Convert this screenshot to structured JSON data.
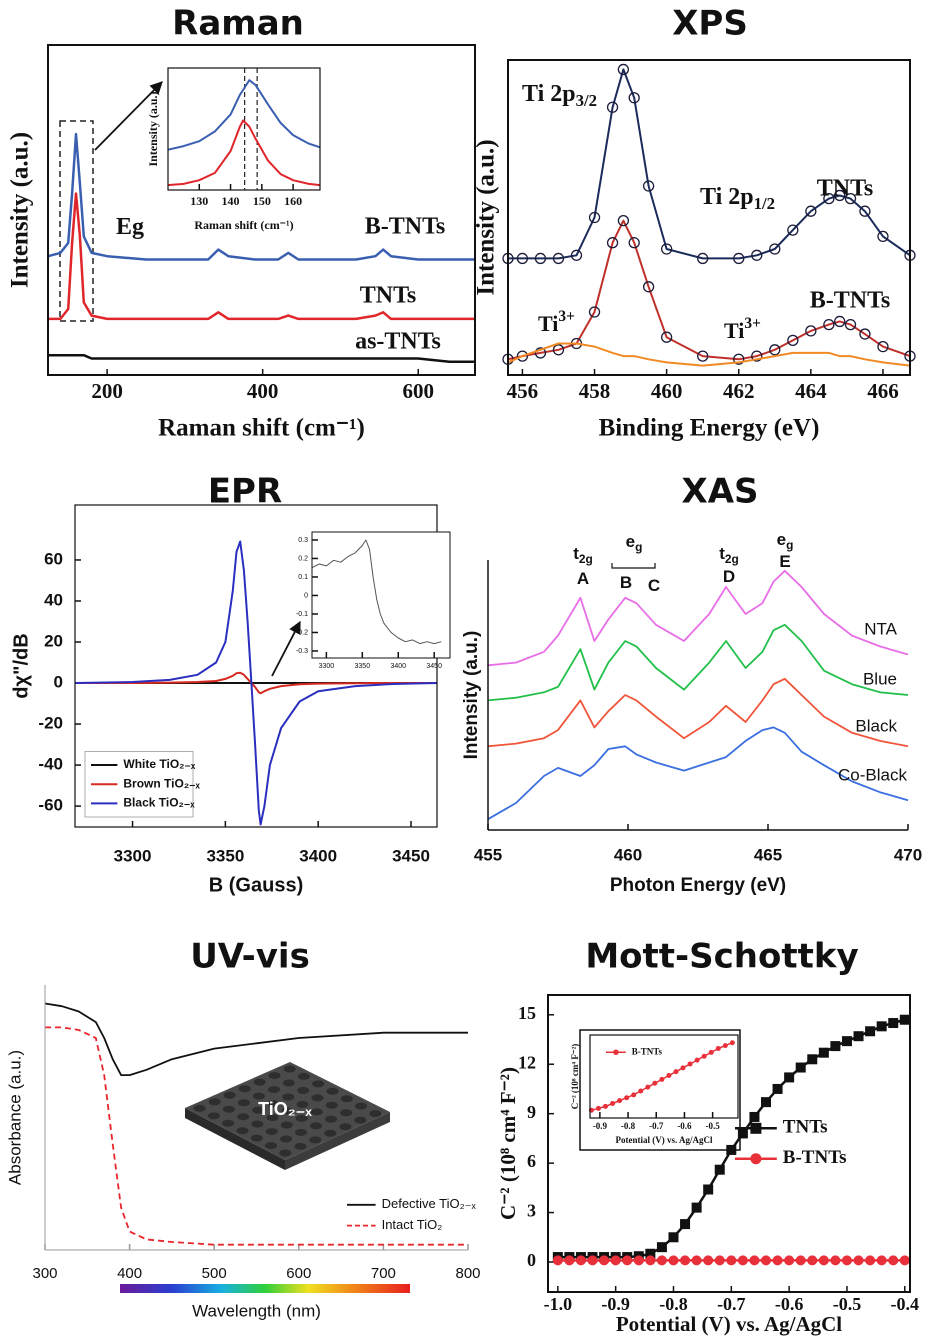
{
  "chart_data": [
    {
      "type": "line",
      "title": "Raman",
      "xlabel": "Raman shift (cm⁻¹)",
      "ylabel": "Intensity (a.u.)",
      "xlim": [
        124,
        673
      ],
      "xticks": [
        200,
        400,
        600
      ],
      "ylim": [
        0,
        100
      ],
      "x": [
        124,
        140,
        150,
        155,
        160,
        165,
        170,
        180,
        200,
        250,
        300,
        330,
        343,
        356,
        390,
        420,
        433,
        446,
        480,
        520,
        545,
        555,
        565,
        600,
        640,
        673
      ],
      "series": [
        {
          "name": "B-TNTs",
          "color": "#3a5fb0",
          "values": [
            36,
            37,
            40,
            55,
            73,
            58,
            42,
            37,
            36,
            35,
            35,
            35,
            38,
            36,
            35,
            35,
            37,
            35,
            35,
            35,
            36,
            38,
            36,
            35,
            35,
            35
          ]
        },
        {
          "name": "TNTs",
          "color": "#e0262b",
          "values": [
            17,
            17,
            20,
            40,
            55,
            42,
            22,
            18,
            17,
            17,
            17,
            17,
            19,
            17,
            17,
            17,
            18,
            17,
            17,
            17,
            18,
            19,
            17,
            17,
            17,
            17
          ]
        },
        {
          "name": "as-TNTs",
          "color": "#111111",
          "values": [
            6,
            6,
            6,
            6,
            6,
            6,
            6,
            5,
            5,
            5,
            5,
            5,
            5,
            5,
            5,
            5,
            5,
            5,
            5,
            5,
            5,
            5,
            5,
            5,
            4,
            4
          ]
        }
      ],
      "annotations": [
        {
          "text": "Eg"
        }
      ]
    },
    {
      "type": "line",
      "xlabel": "Raman shift (cm⁻¹)",
      "ylabel": "Intensity (a.u.)",
      "xlim": [
        120,
        168.6
      ],
      "xticks": [
        130,
        140,
        150,
        160
      ],
      "ylim": [
        0,
        100
      ],
      "vlines": [
        144.5,
        148.5
      ],
      "x": [
        120,
        125,
        130,
        135,
        140,
        143,
        144,
        146,
        148,
        152,
        156,
        160,
        165,
        168.6
      ],
      "series": [
        {
          "color": "#3a5fb0",
          "values": [
            33,
            36,
            40,
            48,
            62,
            78,
            82,
            90,
            86,
            70,
            55,
            45,
            38,
            35
          ]
        },
        {
          "color": "#e0262b",
          "values": [
            4,
            5,
            8,
            14,
            32,
            52,
            57,
            52,
            42,
            24,
            13,
            8,
            5,
            4
          ]
        }
      ]
    },
    {
      "type": "line",
      "title": "XPS",
      "xlabel": "Binding Energy (eV)",
      "ylabel": "Intensity (a.u.)",
      "xlim": [
        455.6,
        466.75
      ],
      "xticks": [
        456,
        458,
        460,
        462,
        464,
        466
      ],
      "ylim": [
        0,
        100
      ],
      "x": [
        455.6,
        456,
        456.5,
        457,
        457.5,
        458,
        458.5,
        458.8,
        459.1,
        459.5,
        460,
        461,
        462,
        462.5,
        463,
        463.5,
        464,
        464.5,
        464.8,
        465.1,
        465.5,
        466,
        466.75
      ],
      "series": [
        {
          "name": "TNTs",
          "color": "#1b2b5a",
          "marker": "circle",
          "values": [
            37,
            37,
            37,
            37,
            38,
            50,
            85,
            97,
            88,
            60,
            40,
            37,
            37,
            38,
            40,
            46,
            52,
            56,
            57,
            56,
            52,
            44,
            38
          ]
        },
        {
          "name": "B-TNTs",
          "color": "#c0302a",
          "marker": "circle",
          "values": [
            5,
            6,
            7,
            8,
            10,
            20,
            42,
            49,
            42,
            28,
            12,
            6,
            5,
            6,
            8,
            11,
            14,
            16,
            17,
            16,
            13,
            9,
            6
          ]
        },
        {
          "color": "#f08a24",
          "values": [
            4,
            6,
            8,
            10,
            10,
            9,
            7,
            6,
            6,
            5,
            4,
            3,
            4,
            5,
            6,
            7,
            7,
            7,
            6,
            6,
            5,
            4,
            3
          ]
        }
      ],
      "annotations": [
        {
          "text": "Ti 2p",
          "sub": "3/2"
        },
        {
          "text": "Ti 2p",
          "sub": "1/2"
        },
        {
          "text": "Ti",
          "sup": "3+"
        },
        {
          "text": "Ti",
          "sup": "3+"
        }
      ]
    },
    {
      "type": "line",
      "title": "EPR",
      "xlabel": "B (Gauss)",
      "ylabel": "dχ\"/dB",
      "xlim": [
        3269,
        3464
      ],
      "xticks": [
        3300,
        3350,
        3400,
        3450
      ],
      "ylim": [
        -70.2,
        86.8
      ],
      "yticks": [
        -60,
        -40,
        -20,
        0,
        20,
        40,
        60
      ],
      "legend": "lower left",
      "x": [
        3269,
        3300,
        3320,
        3335,
        3345,
        3350,
        3354,
        3356,
        3358,
        3360,
        3362,
        3364,
        3366,
        3368,
        3369,
        3371,
        3374,
        3380,
        3390,
        3400,
        3420,
        3440,
        3464
      ],
      "series": [
        {
          "name": "White TiO₂₋ₓ",
          "color": "#111111",
          "values": [
            0,
            0,
            0,
            0,
            0,
            0,
            0,
            0,
            0,
            0,
            0,
            0,
            0,
            0,
            0,
            0,
            0,
            0,
            0,
            0,
            0,
            0,
            0
          ]
        },
        {
          "name": "Brown TiO₂₋ₓ",
          "color": "#d62a20",
          "values": [
            0,
            0,
            0.2,
            0.5,
            1,
            2,
            3.5,
            4.8,
            5,
            4,
            2,
            0,
            -2,
            -4.5,
            -5,
            -4,
            -2.8,
            -1.5,
            -0.6,
            -0.3,
            -0.1,
            0,
            0
          ]
        },
        {
          "name": "Black TiO₂₋ₓ",
          "color": "#2b2fbf",
          "values": [
            0,
            0.5,
            1.5,
            4,
            10,
            20,
            45,
            64,
            69,
            55,
            30,
            0,
            -30,
            -62,
            -69,
            -60,
            -40,
            -22,
            -9,
            -4,
            -1.5,
            -0.5,
            0
          ]
        }
      ]
    },
    {
      "type": "line",
      "xlim": [
        3280,
        3472
      ],
      "xticks": [
        3300,
        3350,
        3400,
        3450
      ],
      "ylim": [
        -0.338,
        0.343
      ],
      "yticks": [
        0.3,
        0.2,
        0.1,
        0,
        -0.1,
        -0.2,
        -0.3
      ],
      "x": [
        3280,
        3290,
        3300,
        3310,
        3320,
        3330,
        3340,
        3350,
        3355,
        3360,
        3365,
        3370,
        3375,
        3380,
        3390,
        3400,
        3410,
        3420,
        3430,
        3440,
        3450,
        3460
      ],
      "series": [
        {
          "color": "#555555",
          "values": [
            0.15,
            0.17,
            0.16,
            0.19,
            0.18,
            0.21,
            0.23,
            0.27,
            0.3,
            0.25,
            0.1,
            -0.02,
            -0.1,
            -0.15,
            -0.2,
            -0.23,
            -0.25,
            -0.24,
            -0.26,
            -0.25,
            -0.26,
            -0.25
          ]
        }
      ]
    },
    {
      "type": "line",
      "title": "XAS",
      "xlabel": "Photon Energy (eV)",
      "ylabel": "Intensity (a.u.)",
      "xlim": [
        455,
        470
      ],
      "xticks": [
        455,
        460,
        465,
        470
      ],
      "ylim": [
        0,
        100
      ],
      "x": [
        455,
        456,
        457,
        457.5,
        458.3,
        458.8,
        459.3,
        459.9,
        460.3,
        461,
        462,
        462.9,
        463.5,
        464.2,
        464.8,
        465.2,
        465.6,
        466.2,
        467,
        468,
        469,
        470
      ],
      "series": [
        {
          "name": "NTA",
          "color": "#e86ee8",
          "values": [
            61,
            62,
            66,
            72,
            86,
            70,
            78,
            86,
            84,
            76,
            70,
            80,
            90,
            80,
            84,
            92,
            96,
            90,
            80,
            72,
            68,
            65
          ]
        },
        {
          "name": "Blue",
          "color": "#22c04a",
          "values": [
            48,
            49,
            51,
            53,
            67,
            52,
            62,
            70,
            68,
            60,
            52,
            62,
            70,
            60,
            66,
            74,
            76,
            70,
            59,
            54,
            51,
            50
          ]
        },
        {
          "name": "Black",
          "color": "#f0553a",
          "values": [
            31,
            32,
            34,
            37,
            48,
            38,
            44,
            50,
            48,
            42,
            34,
            40,
            46,
            40,
            48,
            54,
            56,
            50,
            42,
            36,
            33,
            31
          ]
        },
        {
          "name": "Co-Black",
          "color": "#3a6fe0",
          "values": [
            4,
            10,
            20,
            23,
            20,
            24,
            30,
            31,
            28,
            25,
            22,
            25,
            27,
            33,
            37,
            38,
            36,
            29,
            24,
            18,
            14,
            11
          ]
        }
      ],
      "annotations": [
        {
          "text": "t",
          "sub": "2g"
        },
        {
          "text": "A"
        },
        {
          "text": "e",
          "sub": "g"
        },
        {
          "text": "B"
        },
        {
          "text": "C"
        },
        {
          "text": "t",
          "sub": "2g"
        },
        {
          "text": "D"
        },
        {
          "text": "e",
          "sub": "g"
        },
        {
          "text": "E"
        }
      ]
    },
    {
      "type": "line",
      "title": "UV-vis",
      "xlabel": "Wavelength (nm)",
      "ylabel": "Absorbance (a.u.)",
      "xlim": [
        300,
        800
      ],
      "xticks": [
        300,
        400,
        500,
        600,
        700,
        800
      ],
      "ylim": [
        0,
        100
      ],
      "legend": "lower right",
      "image_label": "TiO₂₋ₓ",
      "x": [
        300,
        320,
        340,
        360,
        370,
        380,
        390,
        400,
        420,
        450,
        500,
        550,
        600,
        700,
        800
      ],
      "series": [
        {
          "name": "Defective TiO₂₋ₓ",
          "color": "#111111",
          "values": [
            93,
            92,
            90,
            86,
            80,
            72,
            66,
            66,
            68,
            72,
            76,
            78,
            80,
            82,
            82
          ]
        },
        {
          "name": "Intact TiO₂",
          "color": "#e8262b",
          "dash": true,
          "values": [
            84,
            84,
            83,
            80,
            66,
            40,
            16,
            7,
            4,
            3,
            2,
            2,
            2,
            2,
            2
          ]
        }
      ]
    },
    {
      "type": "line",
      "title": "Mott-Schottky",
      "xlabel": "Potential (V) vs. Ag/AgCl",
      "ylabel": "C⁻² (10⁸ cm⁴ F⁻²)",
      "xlim": [
        -1.017,
        -0.391
      ],
      "xticks": [
        {
          "value": -1,
          "label": "-1.0"
        },
        -0.9,
        -0.8,
        -0.7,
        -0.6,
        -0.5,
        -0.4
      ],
      "ylim": [
        -1.82,
        16.2
      ],
      "yticks": [
        0,
        3,
        6,
        9,
        12,
        15
      ],
      "legend": "center right",
      "x": [
        -1,
        -0.98,
        -0.96,
        -0.94,
        -0.92,
        -0.9,
        -0.88,
        -0.86,
        -0.84,
        -0.82,
        -0.8,
        -0.78,
        -0.76,
        -0.74,
        -0.72,
        -0.7,
        -0.68,
        -0.66,
        -0.64,
        -0.62,
        -0.6,
        -0.58,
        -0.56,
        -0.54,
        -0.52,
        -0.5,
        -0.48,
        -0.46,
        -0.44,
        -0.42,
        -0.4
      ],
      "series": [
        {
          "name": "TNTs",
          "color": "#111111",
          "marker": "square",
          "values": [
            0.3,
            0.3,
            0.3,
            0.3,
            0.3,
            0.3,
            0.3,
            0.35,
            0.5,
            0.9,
            1.5,
            2.3,
            3.3,
            4.4,
            5.6,
            6.8,
            7.8,
            8.8,
            9.7,
            10.5,
            11.2,
            11.8,
            12.3,
            12.7,
            13.1,
            13.4,
            13.7,
            14.0,
            14.3,
            14.5,
            14.7
          ]
        },
        {
          "name": "B-TNTs",
          "color": "#e8303a",
          "marker": "circle",
          "values": [
            0.1,
            0.1,
            0.1,
            0.1,
            0.1,
            0.1,
            0.1,
            0.1,
            0.1,
            0.1,
            0.1,
            0.1,
            0.1,
            0.1,
            0.1,
            0.1,
            0.1,
            0.1,
            0.1,
            0.1,
            0.1,
            0.1,
            0.1,
            0.1,
            0.1,
            0.1,
            0.1,
            0.1,
            0.1,
            0.1,
            0.1
          ]
        }
      ]
    },
    {
      "type": "line",
      "xlabel": "Potential (V) vs. Ag/AgCl",
      "ylabel": "C⁻² (10⁸ cm⁴ F⁻²)",
      "xlim": [
        -0.935,
        -0.41
      ],
      "xticks": [
        -0.9,
        -0.8,
        -0.7,
        -0.6,
        -0.5
      ],
      "ylim": [
        0,
        4.3
      ],
      "legend": "upper left",
      "x": [
        -0.93,
        -0.905,
        -0.88,
        -0.855,
        -0.83,
        -0.805,
        -0.78,
        -0.755,
        -0.73,
        -0.705,
        -0.68,
        -0.655,
        -0.63,
        -0.605,
        -0.58,
        -0.555,
        -0.53,
        -0.505,
        -0.48,
        -0.455,
        -0.43
      ],
      "series": [
        {
          "name": "B-TNTs",
          "color": "#e8303a",
          "marker": "circle",
          "values": [
            0.4,
            0.5,
            0.6,
            0.75,
            0.9,
            1.05,
            1.2,
            1.4,
            1.6,
            1.8,
            2.0,
            2.2,
            2.4,
            2.6,
            2.8,
            3.0,
            3.2,
            3.4,
            3.6,
            3.75,
            3.9
          ]
        }
      ]
    }
  ]
}
